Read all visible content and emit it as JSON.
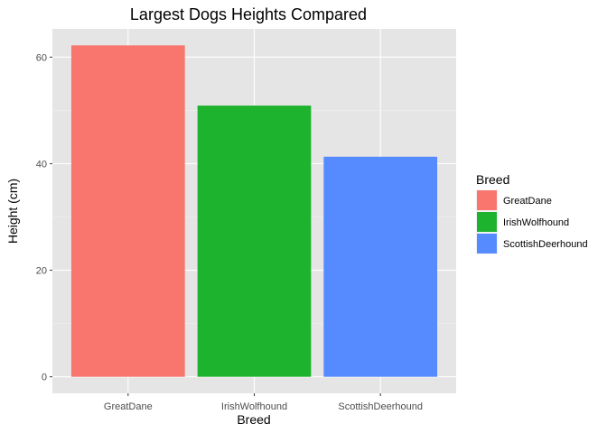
{
  "chart_data": {
    "type": "bar",
    "title": "Largest Dogs Heights Compared",
    "xlabel": "Breed",
    "ylabel": "Height (cm)",
    "categories": [
      "GreatDane",
      "IrishWolfhound",
      "ScottishDeerhound"
    ],
    "values": [
      62.2,
      50.9,
      41.3
    ],
    "colors": [
      "#F8766D",
      "#1EB32E",
      "#558BFF"
    ],
    "ylim": [
      -3.1,
      65.3
    ],
    "yticks": [
      0,
      20,
      40,
      60
    ],
    "grid": true,
    "panel_background": "#E5E5E5",
    "legend": {
      "title": "Breed",
      "position": "right",
      "entries": [
        "GreatDane",
        "IrishWolfhound",
        "ScottishDeerhound"
      ]
    }
  }
}
